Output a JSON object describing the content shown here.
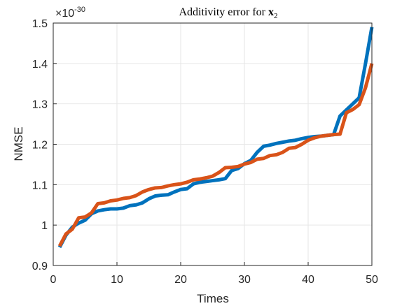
{
  "chart_data": {
    "type": "line",
    "title": "Additivity error for ",
    "title_symbol": "x",
    "title_subscript": "2",
    "xlabel": "Times",
    "ylabel": "NMSE",
    "y_exponent_prefix": "×10",
    "y_exponent_power": "-30",
    "xlim": [
      0,
      50
    ],
    "ylim": [
      0.9,
      1.5
    ],
    "x_ticks": [
      "0",
      "10",
      "20",
      "30",
      "40",
      "50"
    ],
    "y_ticks": [
      "0.9",
      "1",
      "1.1",
      "1.2",
      "1.3",
      "1.4",
      "1.5"
    ],
    "grid": true,
    "x": [
      1,
      2,
      3,
      4,
      5,
      6,
      7,
      8,
      9,
      10,
      11,
      12,
      13,
      14,
      15,
      16,
      17,
      18,
      19,
      20,
      21,
      22,
      23,
      24,
      25,
      26,
      27,
      28,
      29,
      30,
      31,
      32,
      33,
      34,
      35,
      36,
      37,
      38,
      39,
      40,
      41,
      42,
      43,
      44,
      45,
      46,
      47,
      48,
      49,
      50
    ],
    "series": [
      {
        "color": "#0072BD",
        "values": [
          0.945,
          0.975,
          0.995,
          1.005,
          1.012,
          1.028,
          1.035,
          1.038,
          1.04,
          1.04,
          1.042,
          1.048,
          1.05,
          1.055,
          1.065,
          1.072,
          1.074,
          1.075,
          1.082,
          1.088,
          1.09,
          1.102,
          1.106,
          1.108,
          1.11,
          1.112,
          1.115,
          1.135,
          1.14,
          1.152,
          1.16,
          1.18,
          1.195,
          1.198,
          1.202,
          1.205,
          1.208,
          1.21,
          1.214,
          1.217,
          1.219,
          1.22,
          1.222,
          1.224,
          1.27,
          1.285,
          1.3,
          1.315,
          1.4,
          1.49
        ]
      },
      {
        "color": "#D95319",
        "values": [
          0.948,
          0.978,
          0.99,
          1.018,
          1.02,
          1.03,
          1.053,
          1.055,
          1.06,
          1.062,
          1.066,
          1.068,
          1.073,
          1.082,
          1.088,
          1.092,
          1.093,
          1.097,
          1.1,
          1.102,
          1.106,
          1.112,
          1.114,
          1.117,
          1.121,
          1.13,
          1.142,
          1.143,
          1.145,
          1.151,
          1.155,
          1.163,
          1.165,
          1.172,
          1.174,
          1.18,
          1.19,
          1.192,
          1.2,
          1.21,
          1.216,
          1.22,
          1.222,
          1.224,
          1.225,
          1.278,
          1.286,
          1.298,
          1.34,
          1.4
        ]
      }
    ]
  }
}
